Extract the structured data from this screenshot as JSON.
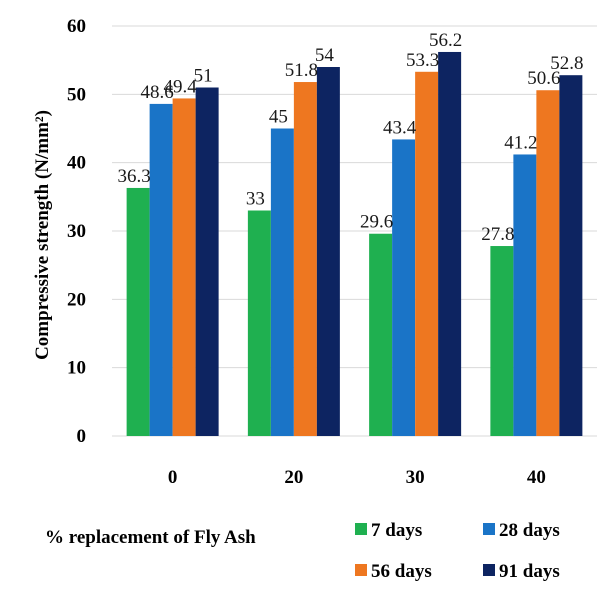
{
  "chart_data": {
    "type": "bar",
    "xlabel": "% replacement of Fly Ash",
    "ylabel": "Compressive strength  (N/mm²)",
    "categories": [
      "0",
      "20",
      "30",
      "40"
    ],
    "ylim": [
      0,
      60
    ],
    "yticks": [
      "0",
      "10",
      "20",
      "30",
      "40",
      "50",
      "60"
    ],
    "grid": true,
    "legend_position": "bottom",
    "series": [
      {
        "name": "7 days",
        "color": "#1fb050",
        "values": [
          36.3,
          33,
          29.6,
          27.8
        ],
        "labels": [
          "36.3",
          "33",
          "29.6",
          "27.8"
        ]
      },
      {
        "name": "28 days",
        "color": "#1a74c7",
        "values": [
          48.6,
          45,
          43.4,
          41.2
        ],
        "labels": [
          "48.6",
          "45",
          "43.4",
          "41.2"
        ]
      },
      {
        "name": "56 days",
        "color": "#ee7720",
        "values": [
          49.4,
          51.8,
          53.3,
          50.6
        ],
        "labels": [
          "49.4",
          "51.8",
          "53.3",
          "50.6"
        ]
      },
      {
        "name": "91 days",
        "color": "#0d2461",
        "values": [
          51,
          54,
          56.2,
          52.8
        ],
        "labels": [
          "51",
          "54",
          "56.2",
          "52.8"
        ]
      }
    ]
  }
}
